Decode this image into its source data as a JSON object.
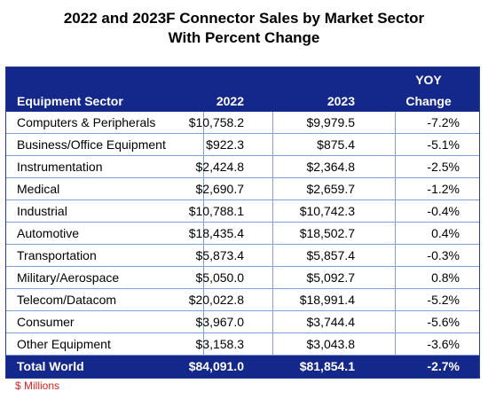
{
  "title_line1": "2022 and 2023F Connector Sales by Market Sector",
  "title_line2": "With Percent Change",
  "header": {
    "sector": "Equipment Sector",
    "y2022": "2022",
    "y2023": "2023",
    "yoy_line1": "YOY",
    "yoy_line2": "Change"
  },
  "rows": [
    {
      "sector": "Computers & Peripherals",
      "v2022": "$10,758.2",
      "v2023": "$9,979.5",
      "yoy": "-7.2%"
    },
    {
      "sector": "Business/Office Equipment",
      "v2022": "$922.3",
      "v2023": "$875.4",
      "yoy": "-5.1%"
    },
    {
      "sector": "Instrumentation",
      "v2022": "$2,424.8",
      "v2023": "$2,364.8",
      "yoy": "-2.5%"
    },
    {
      "sector": "Medical",
      "v2022": "$2,690.7",
      "v2023": "$2,659.7",
      "yoy": "-1.2%"
    },
    {
      "sector": "Industrial",
      "v2022": "$10,788.1",
      "v2023": "$10,742.3",
      "yoy": "-0.4%"
    },
    {
      "sector": "Automotive",
      "v2022": "$18,435.4",
      "v2023": "$18,502.7",
      "yoy": "0.4%"
    },
    {
      "sector": "Transportation",
      "v2022": "$5,873.4",
      "v2023": "$5,857.4",
      "yoy": "-0.3%"
    },
    {
      "sector": "Military/Aerospace",
      "v2022": "$5,050.0",
      "v2023": "$5,092.7",
      "yoy": "0.8%"
    },
    {
      "sector": "Telecom/Datacom",
      "v2022": "$20,022.8",
      "v2023": "$18,991.4",
      "yoy": "-5.2%"
    },
    {
      "sector": "Consumer",
      "v2022": "$3,967.0",
      "v2023": "$3,744.4",
      "yoy": "-5.6%"
    },
    {
      "sector": "Other Equipment",
      "v2022": "$3,158.3",
      "v2023": "$3,043.8",
      "yoy": "-3.6%"
    }
  ],
  "total": {
    "sector": "Total World",
    "v2022": "$84,091.0",
    "v2023": "$81,854.1",
    "yoy": "-2.7%"
  },
  "footnote": "$ Millions",
  "colors": {
    "header_bg": "#14278a",
    "grid": "#7f9fd8",
    "footnote": "#e02020"
  },
  "chart_data": {
    "type": "table",
    "title": "2022 and 2023F Connector Sales by Market Sector With Percent Change",
    "columns": [
      "Equipment Sector",
      "2022",
      "2023",
      "YOY Change"
    ],
    "categories": [
      "Computers & Peripherals",
      "Business/Office Equipment",
      "Instrumentation",
      "Medical",
      "Industrial",
      "Automotive",
      "Transportation",
      "Military/Aerospace",
      "Telecom/Datacom",
      "Consumer",
      "Other Equipment"
    ],
    "series": [
      {
        "name": "2022",
        "values": [
          10758.2,
          922.3,
          2424.8,
          2690.7,
          10788.1,
          18435.4,
          5873.4,
          5050.0,
          20022.8,
          3967.0,
          3158.3
        ]
      },
      {
        "name": "2023",
        "values": [
          9979.5,
          875.4,
          2364.8,
          2659.7,
          10742.3,
          18502.7,
          5857.4,
          5092.7,
          18991.4,
          3744.4,
          3043.8
        ]
      },
      {
        "name": "YOY Change",
        "values": [
          -7.2,
          -5.1,
          -2.5,
          -1.2,
          -0.4,
          0.4,
          -0.3,
          0.8,
          -5.2,
          -5.6,
          -3.6
        ]
      }
    ],
    "totals": {
      "2022": 84091.0,
      "2023": 81854.1,
      "YOY Change": -2.7
    },
    "units": "$ Millions"
  }
}
